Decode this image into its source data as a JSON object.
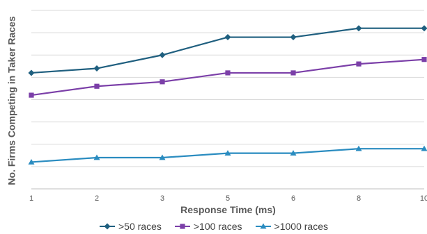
{
  "chart_data": {
    "type": "line",
    "title": "",
    "xlabel": "Response Time (ms)",
    "ylabel": "No. Firms Competing in Taker Races",
    "categories": [
      "1",
      "2",
      "3",
      "5",
      "6",
      "8",
      "10"
    ],
    "ylim": [
      0,
      8
    ],
    "grid": true,
    "legend": "bottom",
    "series": [
      {
        "name": ">50 races",
        "color": "#1f5f7f",
        "marker": "diamond",
        "values": [
          5.2,
          5.4,
          6.0,
          6.8,
          6.8,
          7.2,
          7.2
        ]
      },
      {
        "name": ">100 races",
        "color": "#7b3fa8",
        "marker": "square",
        "values": [
          4.2,
          4.6,
          4.8,
          5.2,
          5.2,
          5.6,
          5.8
        ]
      },
      {
        "name": ">1000 races",
        "color": "#2a8cc0",
        "marker": "triangle",
        "values": [
          1.2,
          1.4,
          1.4,
          1.6,
          1.6,
          1.8,
          1.8
        ]
      }
    ]
  }
}
